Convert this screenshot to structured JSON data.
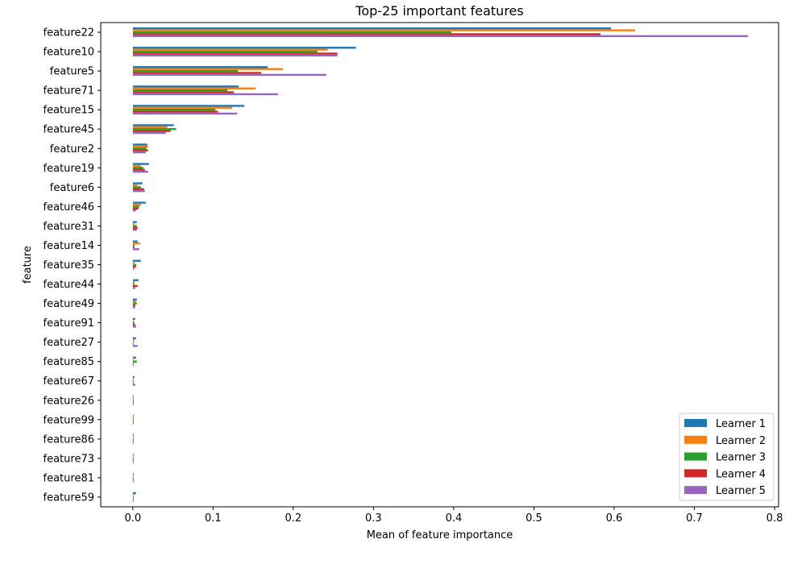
{
  "chart_data": {
    "type": "bar",
    "orientation": "horizontal",
    "title": "Top-25 important features",
    "xlabel": "Mean of feature importance",
    "ylabel": "feature",
    "xlim": [
      -0.04,
      0.805
    ],
    "xticks": [
      0.0,
      0.1,
      0.2,
      0.3,
      0.4,
      0.5,
      0.6,
      0.7,
      0.8
    ],
    "xtick_labels": [
      "0.0",
      "0.1",
      "0.2",
      "0.3",
      "0.4",
      "0.5",
      "0.6",
      "0.7",
      "0.8"
    ],
    "grid": false,
    "legend_position": "lower-right",
    "categories": [
      "feature22",
      "feature10",
      "feature5",
      "feature71",
      "feature15",
      "feature45",
      "feature2",
      "feature19",
      "feature6",
      "feature46",
      "feature31",
      "feature14",
      "feature35",
      "feature44",
      "feature49",
      "feature91",
      "feature27",
      "feature85",
      "feature67",
      "feature26",
      "feature99",
      "feature86",
      "feature73",
      "feature81",
      "feature59"
    ],
    "series": [
      {
        "name": "Learner 1",
        "color": "#1f77b4",
        "values": [
          0.596,
          0.278,
          0.168,
          0.132,
          0.139,
          0.051,
          0.018,
          0.02,
          0.012,
          0.016,
          0.005,
          0.006,
          0.01,
          0.007,
          0.005,
          0.003,
          0.004,
          0.004,
          0.002,
          0.001,
          0.001,
          0.001,
          0.001,
          0.001,
          0.004
        ]
      },
      {
        "name": "Learner 2",
        "color": "#ff7f0e",
        "values": [
          0.626,
          0.243,
          0.187,
          0.153,
          0.124,
          0.043,
          0.019,
          0.01,
          0.006,
          0.01,
          0.002,
          0.009,
          0.002,
          0.002,
          0.004,
          0.001,
          0.002,
          0.001,
          0.001,
          0.001,
          0.001,
          0.001,
          0.001,
          0.001,
          0.001
        ]
      },
      {
        "name": "Learner 3",
        "color": "#2ca02c",
        "values": [
          0.397,
          0.23,
          0.131,
          0.118,
          0.103,
          0.054,
          0.017,
          0.013,
          0.01,
          0.008,
          0.005,
          0.002,
          0.004,
          0.002,
          0.005,
          0.002,
          0.001,
          0.005,
          0.001,
          0.001,
          0.001,
          0.001,
          0.001,
          0.001,
          0.001
        ]
      },
      {
        "name": "Learner 4",
        "color": "#d62728",
        "values": [
          0.583,
          0.255,
          0.16,
          0.126,
          0.106,
          0.047,
          0.019,
          0.015,
          0.014,
          0.007,
          0.006,
          0.002,
          0.004,
          0.006,
          0.003,
          0.003,
          0.001,
          0.001,
          0.001,
          0.001,
          0.001,
          0.001,
          0.001,
          0.001,
          0.001
        ]
      },
      {
        "name": "Learner 5",
        "color": "#9467bd",
        "values": [
          0.767,
          0.255,
          0.241,
          0.181,
          0.13,
          0.041,
          0.016,
          0.019,
          0.015,
          0.004,
          0.005,
          0.008,
          0.002,
          0.003,
          0.003,
          0.004,
          0.006,
          0.001,
          0.003,
          0.001,
          0.001,
          0.001,
          0.001,
          0.001,
          0.001
        ]
      }
    ]
  }
}
